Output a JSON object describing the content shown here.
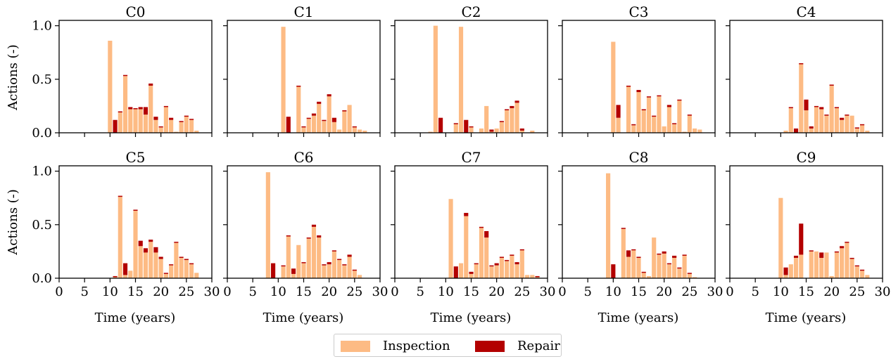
{
  "figure": {
    "xlabel": "Time (years)",
    "ylabel": "Actions (-)"
  },
  "legend": {
    "placement": "bottom-center",
    "items": [
      {
        "label": "Inspection",
        "color": "#fdbb84"
      },
      {
        "label": "Repair",
        "color": "#b30000"
      }
    ]
  },
  "chart_data": [
    {
      "type": "bar",
      "title": "C0",
      "xlim": [
        0,
        30
      ],
      "ylim": [
        0,
        1.05
      ],
      "x": [
        10,
        11,
        12,
        13,
        14,
        15,
        16,
        17,
        18,
        19,
        20,
        21,
        22,
        23,
        24,
        25,
        26,
        27
      ],
      "series": [
        {
          "name": "Inspection",
          "values": [
            0.86,
            0.0,
            0.19,
            0.53,
            0.22,
            0.22,
            0.22,
            0.17,
            0.44,
            0.12,
            0.05,
            0.24,
            0.12,
            0.01,
            0.1,
            0.15,
            0.12,
            0.02
          ]
        },
        {
          "name": "Repair",
          "values": [
            0.0,
            0.12,
            0.01,
            0.01,
            0.02,
            0.01,
            0.02,
            0.07,
            0.02,
            0.03,
            0.01,
            0.01,
            0.02,
            0.0,
            0.01,
            0.01,
            0.01,
            0.0
          ]
        }
      ]
    },
    {
      "type": "bar",
      "title": "C1",
      "xlim": [
        0,
        30
      ],
      "ylim": [
        0,
        1.05
      ],
      "x": [
        11,
        12,
        13,
        14,
        15,
        16,
        17,
        18,
        19,
        20,
        21,
        22,
        23,
        24,
        25,
        26,
        27
      ],
      "series": [
        {
          "name": "Inspection",
          "values": [
            0.99,
            0.0,
            0.0,
            0.43,
            0.05,
            0.13,
            0.16,
            0.27,
            0.11,
            0.34,
            0.1,
            0.03,
            0.2,
            0.26,
            0.05,
            0.03,
            0.02
          ]
        },
        {
          "name": "Repair",
          "values": [
            0.0,
            0.15,
            0.0,
            0.01,
            0.01,
            0.01,
            0.02,
            0.02,
            0.01,
            0.02,
            0.04,
            0.0,
            0.01,
            0.0,
            0.01,
            0.0,
            0.0
          ]
        }
      ]
    },
    {
      "type": "bar",
      "title": "C2",
      "xlim": [
        0,
        30
      ],
      "ylim": [
        0,
        1.05
      ],
      "x": [
        7,
        8,
        9,
        10,
        11,
        12,
        13,
        14,
        15,
        16,
        17,
        18,
        19,
        20,
        21,
        22,
        23,
        24,
        25,
        26,
        27
      ],
      "series": [
        {
          "name": "Inspection",
          "values": [
            0.01,
            1.0,
            0.0,
            0.0,
            0.0,
            0.08,
            0.99,
            0.0,
            0.05,
            0.0,
            0.04,
            0.25,
            0.01,
            0.04,
            0.1,
            0.21,
            0.23,
            0.28,
            0.02,
            0.0,
            0.02
          ]
        },
        {
          "name": "Repair",
          "values": [
            0.0,
            0.0,
            0.14,
            0.0,
            0.0,
            0.01,
            0.0,
            0.12,
            0.01,
            0.0,
            0.0,
            0.0,
            0.02,
            0.0,
            0.01,
            0.01,
            0.02,
            0.02,
            0.02,
            0.0,
            0.0
          ]
        }
      ]
    },
    {
      "type": "bar",
      "title": "C3",
      "xlim": [
        0,
        30
      ],
      "ylim": [
        0,
        1.05
      ],
      "x": [
        10,
        11,
        12,
        13,
        14,
        15,
        16,
        17,
        18,
        19,
        20,
        21,
        22,
        23,
        24,
        25,
        26,
        27
      ],
      "series": [
        {
          "name": "Inspection",
          "values": [
            0.85,
            0.14,
            0.0,
            0.43,
            0.07,
            0.38,
            0.21,
            0.33,
            0.15,
            0.34,
            0.06,
            0.24,
            0.08,
            0.3,
            0.01,
            0.16,
            0.04,
            0.03
          ]
        },
        {
          "name": "Repair",
          "values": [
            0.0,
            0.12,
            0.0,
            0.01,
            0.01,
            0.02,
            0.01,
            0.01,
            0.01,
            0.01,
            0.0,
            0.02,
            0.01,
            0.01,
            0.0,
            0.01,
            0.0,
            0.0
          ]
        }
      ]
    },
    {
      "type": "bar",
      "title": "C4",
      "xlim": [
        0,
        30
      ],
      "ylim": [
        0,
        1.05
      ],
      "x": [
        10,
        11,
        12,
        13,
        14,
        15,
        16,
        17,
        18,
        19,
        20,
        21,
        22,
        23,
        24,
        25,
        26,
        27
      ],
      "series": [
        {
          "name": "Inspection",
          "values": [
            0.0,
            0.02,
            0.23,
            0.0,
            0.64,
            0.21,
            0.04,
            0.24,
            0.22,
            0.16,
            0.44,
            0.23,
            0.12,
            0.16,
            0.16,
            0.04,
            0.07,
            0.02
          ]
        },
        {
          "name": "Repair",
          "values": [
            0.0,
            0.0,
            0.01,
            0.04,
            0.01,
            0.1,
            0.02,
            0.01,
            0.02,
            0.01,
            0.01,
            0.01,
            0.02,
            0.01,
            0.0,
            0.01,
            0.01,
            0.0
          ]
        }
      ]
    },
    {
      "type": "bar",
      "title": "C5",
      "xlim": [
        0,
        30
      ],
      "ylim": [
        0,
        1.05
      ],
      "x": [
        10,
        11,
        12,
        13,
        14,
        15,
        16,
        17,
        18,
        19,
        20,
        21,
        22,
        23,
        24,
        25,
        26,
        27
      ],
      "series": [
        {
          "name": "Inspection",
          "values": [
            0.0,
            0.01,
            0.76,
            0.03,
            0.07,
            0.63,
            0.3,
            0.24,
            0.34,
            0.24,
            0.18,
            0.04,
            0.12,
            0.33,
            0.19,
            0.17,
            0.13,
            0.05
          ]
        },
        {
          "name": "Repair",
          "values": [
            0.0,
            0.01,
            0.01,
            0.11,
            0.0,
            0.01,
            0.05,
            0.04,
            0.02,
            0.05,
            0.02,
            0.01,
            0.01,
            0.01,
            0.01,
            0.01,
            0.01,
            0.0
          ]
        }
      ]
    },
    {
      "type": "bar",
      "title": "C6",
      "xlim": [
        0,
        30
      ],
      "ylim": [
        0,
        1.05
      ],
      "x": [
        8,
        9,
        10,
        11,
        12,
        13,
        14,
        15,
        16,
        17,
        18,
        19,
        20,
        21,
        22,
        23,
        24,
        25,
        26,
        27
      ],
      "series": [
        {
          "name": "Inspection",
          "values": [
            0.99,
            0.0,
            0.0,
            0.11,
            0.39,
            0.04,
            0.31,
            0.14,
            0.37,
            0.48,
            0.38,
            0.12,
            0.13,
            0.25,
            0.17,
            0.12,
            0.2,
            0.07,
            0.03,
            0.0
          ]
        },
        {
          "name": "Repair",
          "values": [
            0.0,
            0.14,
            0.0,
            0.01,
            0.01,
            0.05,
            0.0,
            0.01,
            0.01,
            0.02,
            0.02,
            0.01,
            0.02,
            0.01,
            0.01,
            0.01,
            0.02,
            0.01,
            0.0,
            0.0
          ]
        }
      ]
    },
    {
      "type": "bar",
      "title": "C7",
      "xlim": [
        0,
        30
      ],
      "ylim": [
        0,
        1.05
      ],
      "x": [
        11,
        12,
        13,
        14,
        15,
        16,
        17,
        18,
        19,
        20,
        21,
        22,
        23,
        24,
        25,
        26,
        27,
        28
      ],
      "series": [
        {
          "name": "Inspection",
          "values": [
            0.74,
            0.0,
            0.14,
            0.58,
            0.04,
            0.13,
            0.47,
            0.38,
            0.11,
            0.12,
            0.19,
            0.16,
            0.21,
            0.13,
            0.26,
            0.03,
            0.03,
            0.01
          ]
        },
        {
          "name": "Repair",
          "values": [
            0.0,
            0.11,
            0.0,
            0.03,
            0.02,
            0.01,
            0.01,
            0.06,
            0.01,
            0.02,
            0.01,
            0.01,
            0.01,
            0.02,
            0.01,
            0.0,
            0.0,
            0.01
          ]
        }
      ]
    },
    {
      "type": "bar",
      "title": "C8",
      "xlim": [
        0,
        30
      ],
      "ylim": [
        0,
        1.05
      ],
      "x": [
        9,
        10,
        11,
        12,
        13,
        14,
        15,
        16,
        17,
        18,
        19,
        20,
        21,
        22,
        23,
        24,
        25,
        26,
        27
      ],
      "series": [
        {
          "name": "Inspection",
          "values": [
            0.98,
            0.0,
            0.0,
            0.46,
            0.2,
            0.26,
            0.19,
            0.05,
            0.02,
            0.38,
            0.22,
            0.23,
            0.13,
            0.19,
            0.09,
            0.21,
            0.04,
            0.01,
            0.0
          ]
        },
        {
          "name": "Repair",
          "values": [
            0.0,
            0.13,
            0.0,
            0.01,
            0.06,
            0.01,
            0.01,
            0.01,
            0.0,
            0.0,
            0.01,
            0.02,
            0.01,
            0.02,
            0.01,
            0.01,
            0.01,
            0.0,
            0.0
          ]
        }
      ]
    },
    {
      "type": "bar",
      "title": "C9",
      "xlim": [
        0,
        30
      ],
      "ylim": [
        0,
        1.05
      ],
      "x": [
        10,
        11,
        12,
        13,
        14,
        15,
        16,
        17,
        18,
        19,
        20,
        21,
        22,
        23,
        24,
        25,
        26,
        27
      ],
      "series": [
        {
          "name": "Inspection",
          "values": [
            0.75,
            0.03,
            0.13,
            0.19,
            0.22,
            0.0,
            0.25,
            0.25,
            0.19,
            0.24,
            0.02,
            0.24,
            0.28,
            0.33,
            0.18,
            0.11,
            0.07,
            0.03
          ]
        },
        {
          "name": "Repair",
          "values": [
            0.0,
            0.07,
            0.0,
            0.02,
            0.29,
            0.0,
            0.01,
            0.0,
            0.05,
            0.0,
            0.0,
            0.01,
            0.02,
            0.01,
            0.01,
            0.01,
            0.01,
            0.0
          ]
        }
      ]
    }
  ]
}
